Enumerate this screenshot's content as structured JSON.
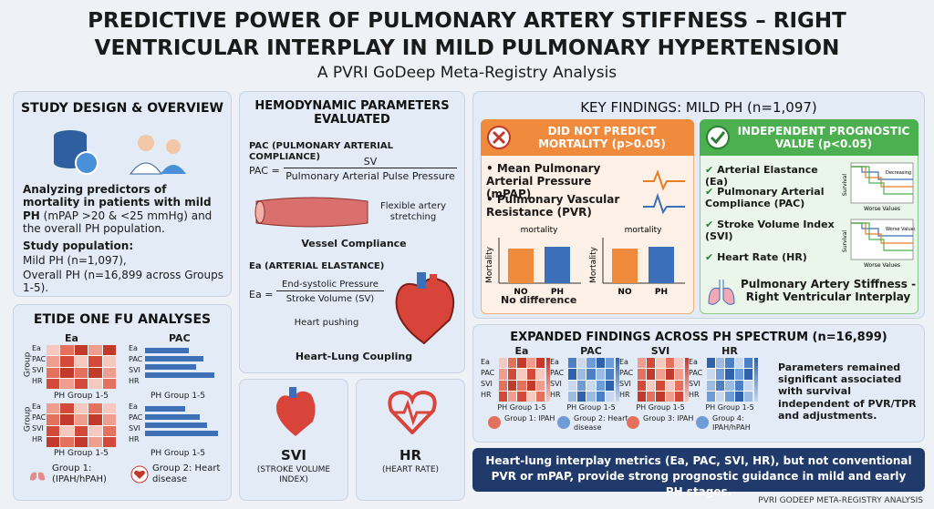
{
  "header": {
    "title": "PREDICTIVE POWER OF PULMONARY ARTERY STIFFNESS – RIGHT VENTRICULAR INTERPLAY IN MILD PULMONARY HYPERTENSION",
    "subtitle": "A PVRI GoDeep Meta-Registry Analysis"
  },
  "study_design": {
    "title": "STUDY DESIGN & OVERVIEW",
    "description_bold": "Analyzing predictors of mortality in patients with mild PH",
    "description_rest": " (mPAP >20 & <25 mmHg) and the overall PH population.",
    "population_label": "Study population:",
    "population_lines": [
      "Mild PH (n=1,097),",
      "Overall PH (n=16,899 across Groups 1-5)."
    ]
  },
  "etide": {
    "title": "ETIDE ONE FU ANALYSES",
    "panels": [
      "Ea",
      "PAC"
    ],
    "rows": [
      "Ea",
      "PAC",
      "SVI",
      "HR"
    ],
    "y_label": "Group",
    "x_label": "PH Group 1-5",
    "legend": [
      "Group 1: (IPAH/hPAH)",
      "Group 2: Heart disease"
    ]
  },
  "hemodynamic": {
    "title": "HEMODYNAMIC PARAMETERS EVALUATED",
    "pac_heading": "PAC (PULMONARY ARTERIAL COMPLIANCE)",
    "pac_lhs": "PAC =",
    "pac_numerator": "SV",
    "pac_denominator": "Pulmonary Arterial Pulse Pressure",
    "vessel_note": "Flexible artery stretching",
    "vessel_caption": "Vessel Compliance",
    "ea_heading": "Ea (ARTERIAL ELASTANCE)",
    "ea_lhs": "Ea =",
    "ea_numerator": "End-systolic Pressure",
    "ea_denominator": "Stroke Volume (SV)",
    "heart_note": "Heart pushing",
    "heart_caption": "Heart-Lung Coupling"
  },
  "cards": [
    {
      "label": "SVI",
      "sublabel": "(STROKE VOLUME INDEX)"
    },
    {
      "label": "HR",
      "sublabel": "(HEART RATE)"
    }
  ],
  "key_findings": {
    "title": "KEY FINDINGS: MILD PH (n=1,097)",
    "not_predict": {
      "header": "DID NOT PREDICT MORTALITY (p>0.05)",
      "items": [
        "Mean Pulmonary Arterial Pressure (mPAP)",
        "Pulmonary Vascular Resistance (PVR)"
      ],
      "chart_title": "mortality",
      "y_label": "Mortality",
      "categories": [
        "NO",
        "PH"
      ],
      "caption": "No difference"
    },
    "independent": {
      "header": "INDEPENDENT PROGNOSTIC VALUE (p<0.05)",
      "items": [
        "Arterial Elastance (Ea)",
        "Pulmonary Arterial Compliance (PAC)",
        "Stroke Volume Index (SVI)",
        "Heart Rate (HR)"
      ],
      "km_y_label": "Survival",
      "km_x_label": "Worse Values",
      "km_legend": [
        "Decreasing",
        "Worse Values"
      ],
      "footer": "Pulmonary Artery Stiffness - Right Ventricular Interplay"
    }
  },
  "expanded": {
    "title": "EXPANDED FINDINGS ACROSS PH SPECTRUM (n=16,899)",
    "columns": [
      "Ea",
      "PAC",
      "SVI",
      "HR"
    ],
    "rows": [
      "Ea",
      "PAC",
      "SVI",
      "HR"
    ],
    "x_label": "PH Group 1-5",
    "groups": [
      "Group 1: IPAH",
      "Group 2: Heart disease",
      "Group 3: IPAH",
      "Group 4: IPAH/hPAH"
    ],
    "note": "Parameters remained significant associated with survival independent of PVR/TPR and adjustments."
  },
  "banner": "Heart-lung interplay metrics (Ea, PAC, SVI, HR), but not conventional PVR or mPAP, provide strong prognostic guidance in mild and early PH stages.",
  "footer": "PVRI GODEEP META-REGISTRY ANALYSIS"
}
